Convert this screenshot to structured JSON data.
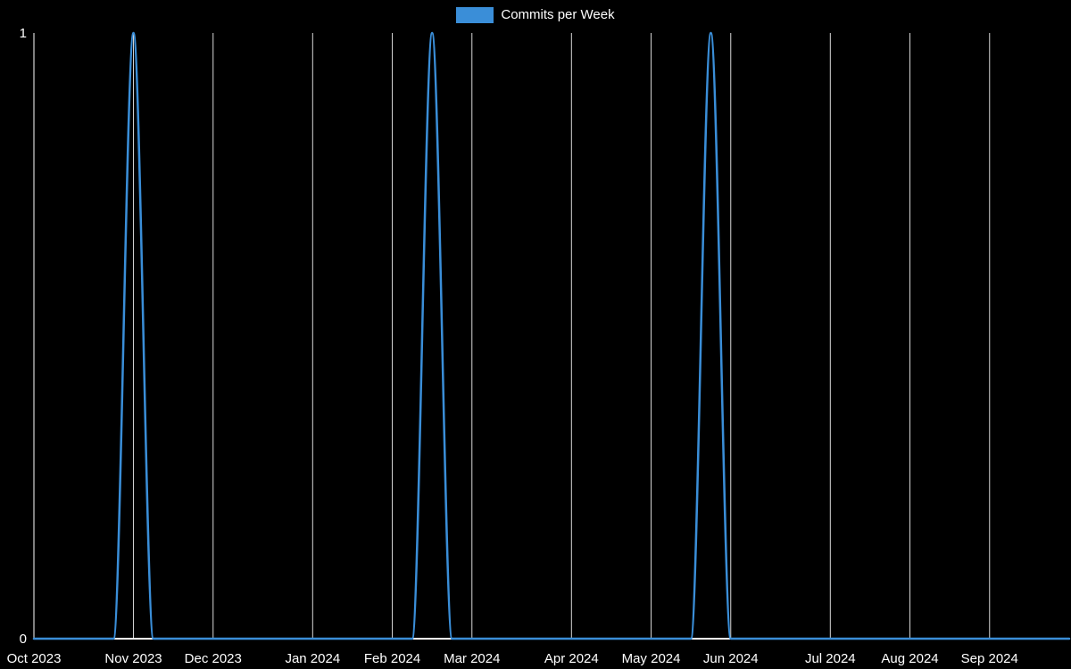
{
  "legend": {
    "label": "Commits per Week",
    "swatch_color": "#3a8ed8"
  },
  "colors": {
    "background": "#000000",
    "line": "#3a8ed8",
    "grid": "#ffffff",
    "axis": "#ffffff",
    "text": "#ffffff"
  },
  "chart_data": {
    "type": "line",
    "title": "Commits per Week",
    "legend_position": "top",
    "grid": "vertical-only",
    "ylim": [
      0,
      1
    ],
    "y_ticks": [
      {
        "value": 0,
        "label": "0"
      },
      {
        "value": 1,
        "label": "1"
      }
    ],
    "x_tick_labels": [
      "Oct 2023",
      "Nov 2023",
      "Dec 2023",
      "Jan 2024",
      "Feb 2024",
      "Mar 2024",
      "Apr 2024",
      "May 2024",
      "Jun 2024",
      "Jul 2024",
      "Aug 2024",
      "Sep 2024"
    ],
    "series_name": "Commits per Week",
    "x": [
      "2023-10-01",
      "2023-10-08",
      "2023-10-15",
      "2023-10-22",
      "2023-10-29",
      "2023-11-05",
      "2023-11-12",
      "2023-11-19",
      "2023-11-26",
      "2023-12-03",
      "2023-12-10",
      "2023-12-17",
      "2023-12-24",
      "2023-12-31",
      "2024-01-07",
      "2024-01-14",
      "2024-01-21",
      "2024-01-28",
      "2024-02-04",
      "2024-02-11",
      "2024-02-18",
      "2024-02-25",
      "2024-03-03",
      "2024-03-10",
      "2024-03-17",
      "2024-03-24",
      "2024-03-31",
      "2024-04-07",
      "2024-04-14",
      "2024-04-21",
      "2024-04-28",
      "2024-05-05",
      "2024-05-12",
      "2024-05-19",
      "2024-05-26",
      "2024-06-02",
      "2024-06-09",
      "2024-06-16",
      "2024-06-23",
      "2024-06-30",
      "2024-07-07",
      "2024-07-14",
      "2024-07-21",
      "2024-07-28",
      "2024-08-04",
      "2024-08-11",
      "2024-08-18",
      "2024-08-25",
      "2024-09-01",
      "2024-09-08",
      "2024-09-15",
      "2024-09-22",
      "2024-09-29"
    ],
    "values": [
      0,
      0,
      0,
      0,
      0,
      1,
      0,
      0,
      0,
      0,
      0,
      0,
      0,
      0,
      0,
      0,
      0,
      0,
      0,
      0,
      1,
      0,
      0,
      0,
      0,
      0,
      0,
      0,
      0,
      0,
      0,
      0,
      0,
      0,
      1,
      0,
      0,
      0,
      0,
      0,
      0,
      0,
      0,
      0,
      0,
      0,
      0,
      0,
      0,
      0,
      0,
      0,
      0
    ],
    "peak_weeks": [
      "2023-11-05",
      "2024-02-18",
      "2024-05-26"
    ]
  }
}
